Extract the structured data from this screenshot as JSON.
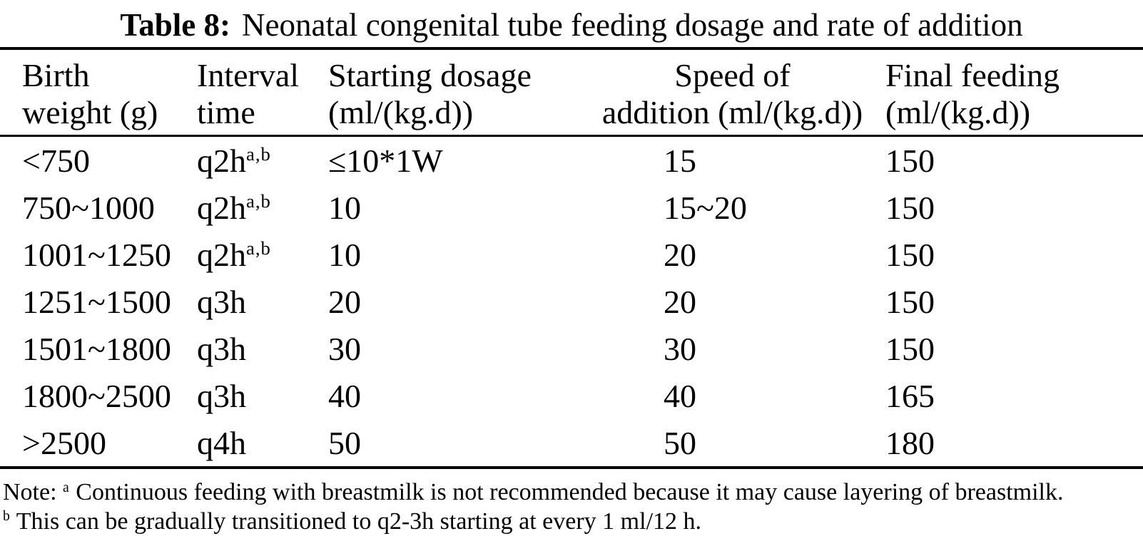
{
  "title": {
    "label": "Table 8:",
    "text": "Neonatal congenital tube feeding dosage and rate of addition"
  },
  "table": {
    "columns": [
      {
        "id": "birth_weight",
        "label_lines": [
          "Birth",
          "weight (g)"
        ]
      },
      {
        "id": "interval_time",
        "label_lines": [
          "Interval",
          "time"
        ]
      },
      {
        "id": "starting_dosage",
        "label_lines": [
          "Starting dosage",
          "(ml/(kg.d))"
        ]
      },
      {
        "id": "speed_of_addition",
        "label_lines": [
          "Speed of",
          "addition (ml/(kg.d))"
        ]
      },
      {
        "id": "final_feeding",
        "label_lines": [
          "Final feeding",
          "(ml/(kg.d))"
        ]
      }
    ],
    "rows": [
      {
        "birth_weight": "<750",
        "interval_time": "q2h",
        "interval_time_sup": "a,b",
        "starting_dosage": "≤10*1W",
        "speed_of_addition": "15",
        "final_feeding": "150"
      },
      {
        "birth_weight": "750~1000",
        "interval_time": "q2h",
        "interval_time_sup": "a,b",
        "starting_dosage": "10",
        "speed_of_addition": "15~20",
        "final_feeding": "150"
      },
      {
        "birth_weight": "1001~1250",
        "interval_time": "q2h",
        "interval_time_sup": "a,b",
        "starting_dosage": "10",
        "speed_of_addition": "20",
        "final_feeding": "150"
      },
      {
        "birth_weight": "1251~1500",
        "interval_time": "q3h",
        "starting_dosage": "20",
        "speed_of_addition": "20",
        "final_feeding": "150"
      },
      {
        "birth_weight": "1501~1800",
        "interval_time": "q3h",
        "starting_dosage": "30",
        "speed_of_addition": "30",
        "final_feeding": "150"
      },
      {
        "birth_weight": "1800~2500",
        "interval_time": "q3h",
        "starting_dosage": "40",
        "speed_of_addition": "40",
        "final_feeding": "165"
      },
      {
        "birth_weight": ">2500",
        "interval_time": "q4h",
        "starting_dosage": "50",
        "speed_of_addition": "50",
        "final_feeding": "180"
      }
    ]
  },
  "notes": {
    "prefix": "Note:",
    "items": [
      {
        "marker": "a",
        "text": "Continuous feeding with breastmilk is not recommended because it may cause layering of breastmilk."
      },
      {
        "marker": "b",
        "text": "This can be gradually transitioned to q2-3h starting at every 1 ml/12 h."
      }
    ]
  },
  "colors": {
    "text": "#000000",
    "background": "#ffffff",
    "rule": "#000000"
  }
}
